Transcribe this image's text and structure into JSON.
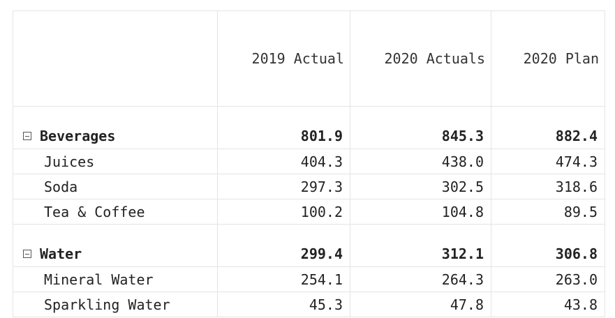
{
  "columns": {
    "label": "",
    "c1": "2019 Actual",
    "c2": "2020 Actuals",
    "c3": "2020 Plan"
  },
  "groups": [
    {
      "name": "Beverages",
      "expanded": true,
      "values": [
        "801.9",
        "845.3",
        "882.4"
      ],
      "rows": [
        {
          "name": "Juices",
          "values": [
            "404.3",
            "438.0",
            "474.3"
          ]
        },
        {
          "name": "Soda",
          "values": [
            "297.3",
            "302.5",
            "318.6"
          ]
        },
        {
          "name": "Tea & Coffee",
          "values": [
            "100.2",
            "104.8",
            "89.5"
          ]
        }
      ]
    },
    {
      "name": "Water",
      "expanded": true,
      "values": [
        "299.4",
        "312.1",
        "306.8"
      ],
      "rows": [
        {
          "name": "Mineral Water",
          "values": [
            "254.1",
            "264.3",
            "263.0"
          ]
        },
        {
          "name": "Sparkling Water",
          "values": [
            "45.3",
            "47.8",
            "43.8"
          ]
        }
      ]
    }
  ],
  "icons": {
    "toggle": "collapse-minus-icon"
  },
  "colors": {
    "grid_line": "#e4e4e4",
    "text": "#222222"
  }
}
